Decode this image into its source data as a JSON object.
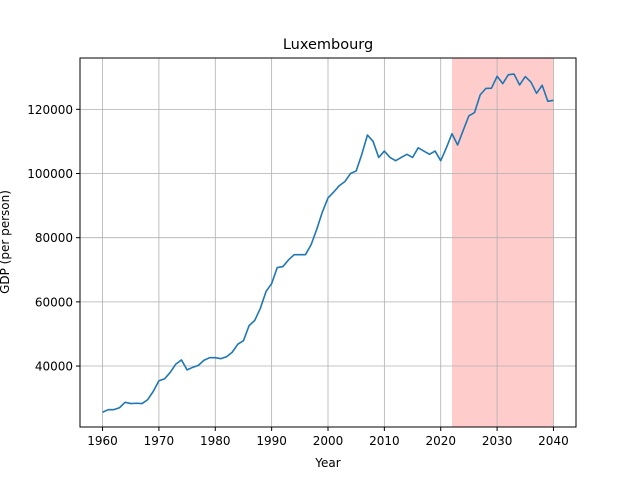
{
  "chart_data": {
    "type": "line",
    "title": "Luxembourg",
    "xlabel": "Year",
    "ylabel": "GDP (per person)",
    "xlim": [
      1956,
      2044
    ],
    "ylim": [
      21000,
      136000
    ],
    "xticks": [
      1960,
      1970,
      1980,
      1990,
      2000,
      2010,
      2020,
      2030,
      2040
    ],
    "yticks": [
      40000,
      60000,
      80000,
      100000,
      120000
    ],
    "ytick_labels": [
      "40000",
      "60000",
      "80000",
      "100000",
      "120000"
    ],
    "grid": true,
    "line_color": "#1f77b4",
    "highlight_span": {
      "from": 2022,
      "to": 2040,
      "color": "#ffcccc"
    },
    "series": [
      {
        "x": [
          1960,
          1961,
          1962,
          1963,
          1964,
          1965,
          1966,
          1967,
          1968,
          1969,
          1970,
          1971,
          1972,
          1973,
          1974,
          1975,
          1976,
          1977,
          1978,
          1979,
          1980,
          1981,
          1982,
          1983,
          1984,
          1985,
          1986,
          1987,
          1988,
          1989,
          1990,
          1991,
          1992,
          1993,
          1994,
          1995,
          1996,
          1997,
          1998,
          1999,
          2000,
          2001,
          2002,
          2003,
          2004,
          2005,
          2006,
          2007,
          2008,
          2009,
          2010,
          2011,
          2012,
          2013,
          2014,
          2015,
          2016,
          2017,
          2018,
          2019,
          2020,
          2021,
          2022,
          2023,
          2024,
          2025,
          2026,
          2027,
          2028,
          2029,
          2030,
          2031,
          2032,
          2033,
          2034,
          2035,
          2036,
          2037,
          2038,
          2039,
          2040
        ],
        "values": [
          25600,
          26400,
          26400,
          27000,
          28700,
          28300,
          28400,
          28300,
          29500,
          32100,
          35400,
          36000,
          38000,
          40600,
          41900,
          38800,
          39600,
          40200,
          41800,
          42600,
          42600,
          42300,
          42900,
          44300,
          46800,
          47900,
          52600,
          54200,
          58000,
          63200,
          65700,
          70700,
          71000,
          73100,
          74700,
          74700,
          74700,
          77800,
          82600,
          88000,
          92400,
          94200,
          96200,
          97500,
          100000,
          100800,
          106000,
          112000,
          110000,
          105000,
          107000,
          105000,
          104000,
          105000,
          106000,
          105000,
          108000,
          107000,
          106000,
          107000,
          104000,
          108000,
          112400,
          108900,
          113500,
          118000,
          119000,
          124500,
          126500,
          126600,
          130300,
          128000,
          130800,
          131000,
          127600,
          130200,
          128500,
          125000,
          127500,
          122500,
          122800
        ]
      }
    ]
  }
}
